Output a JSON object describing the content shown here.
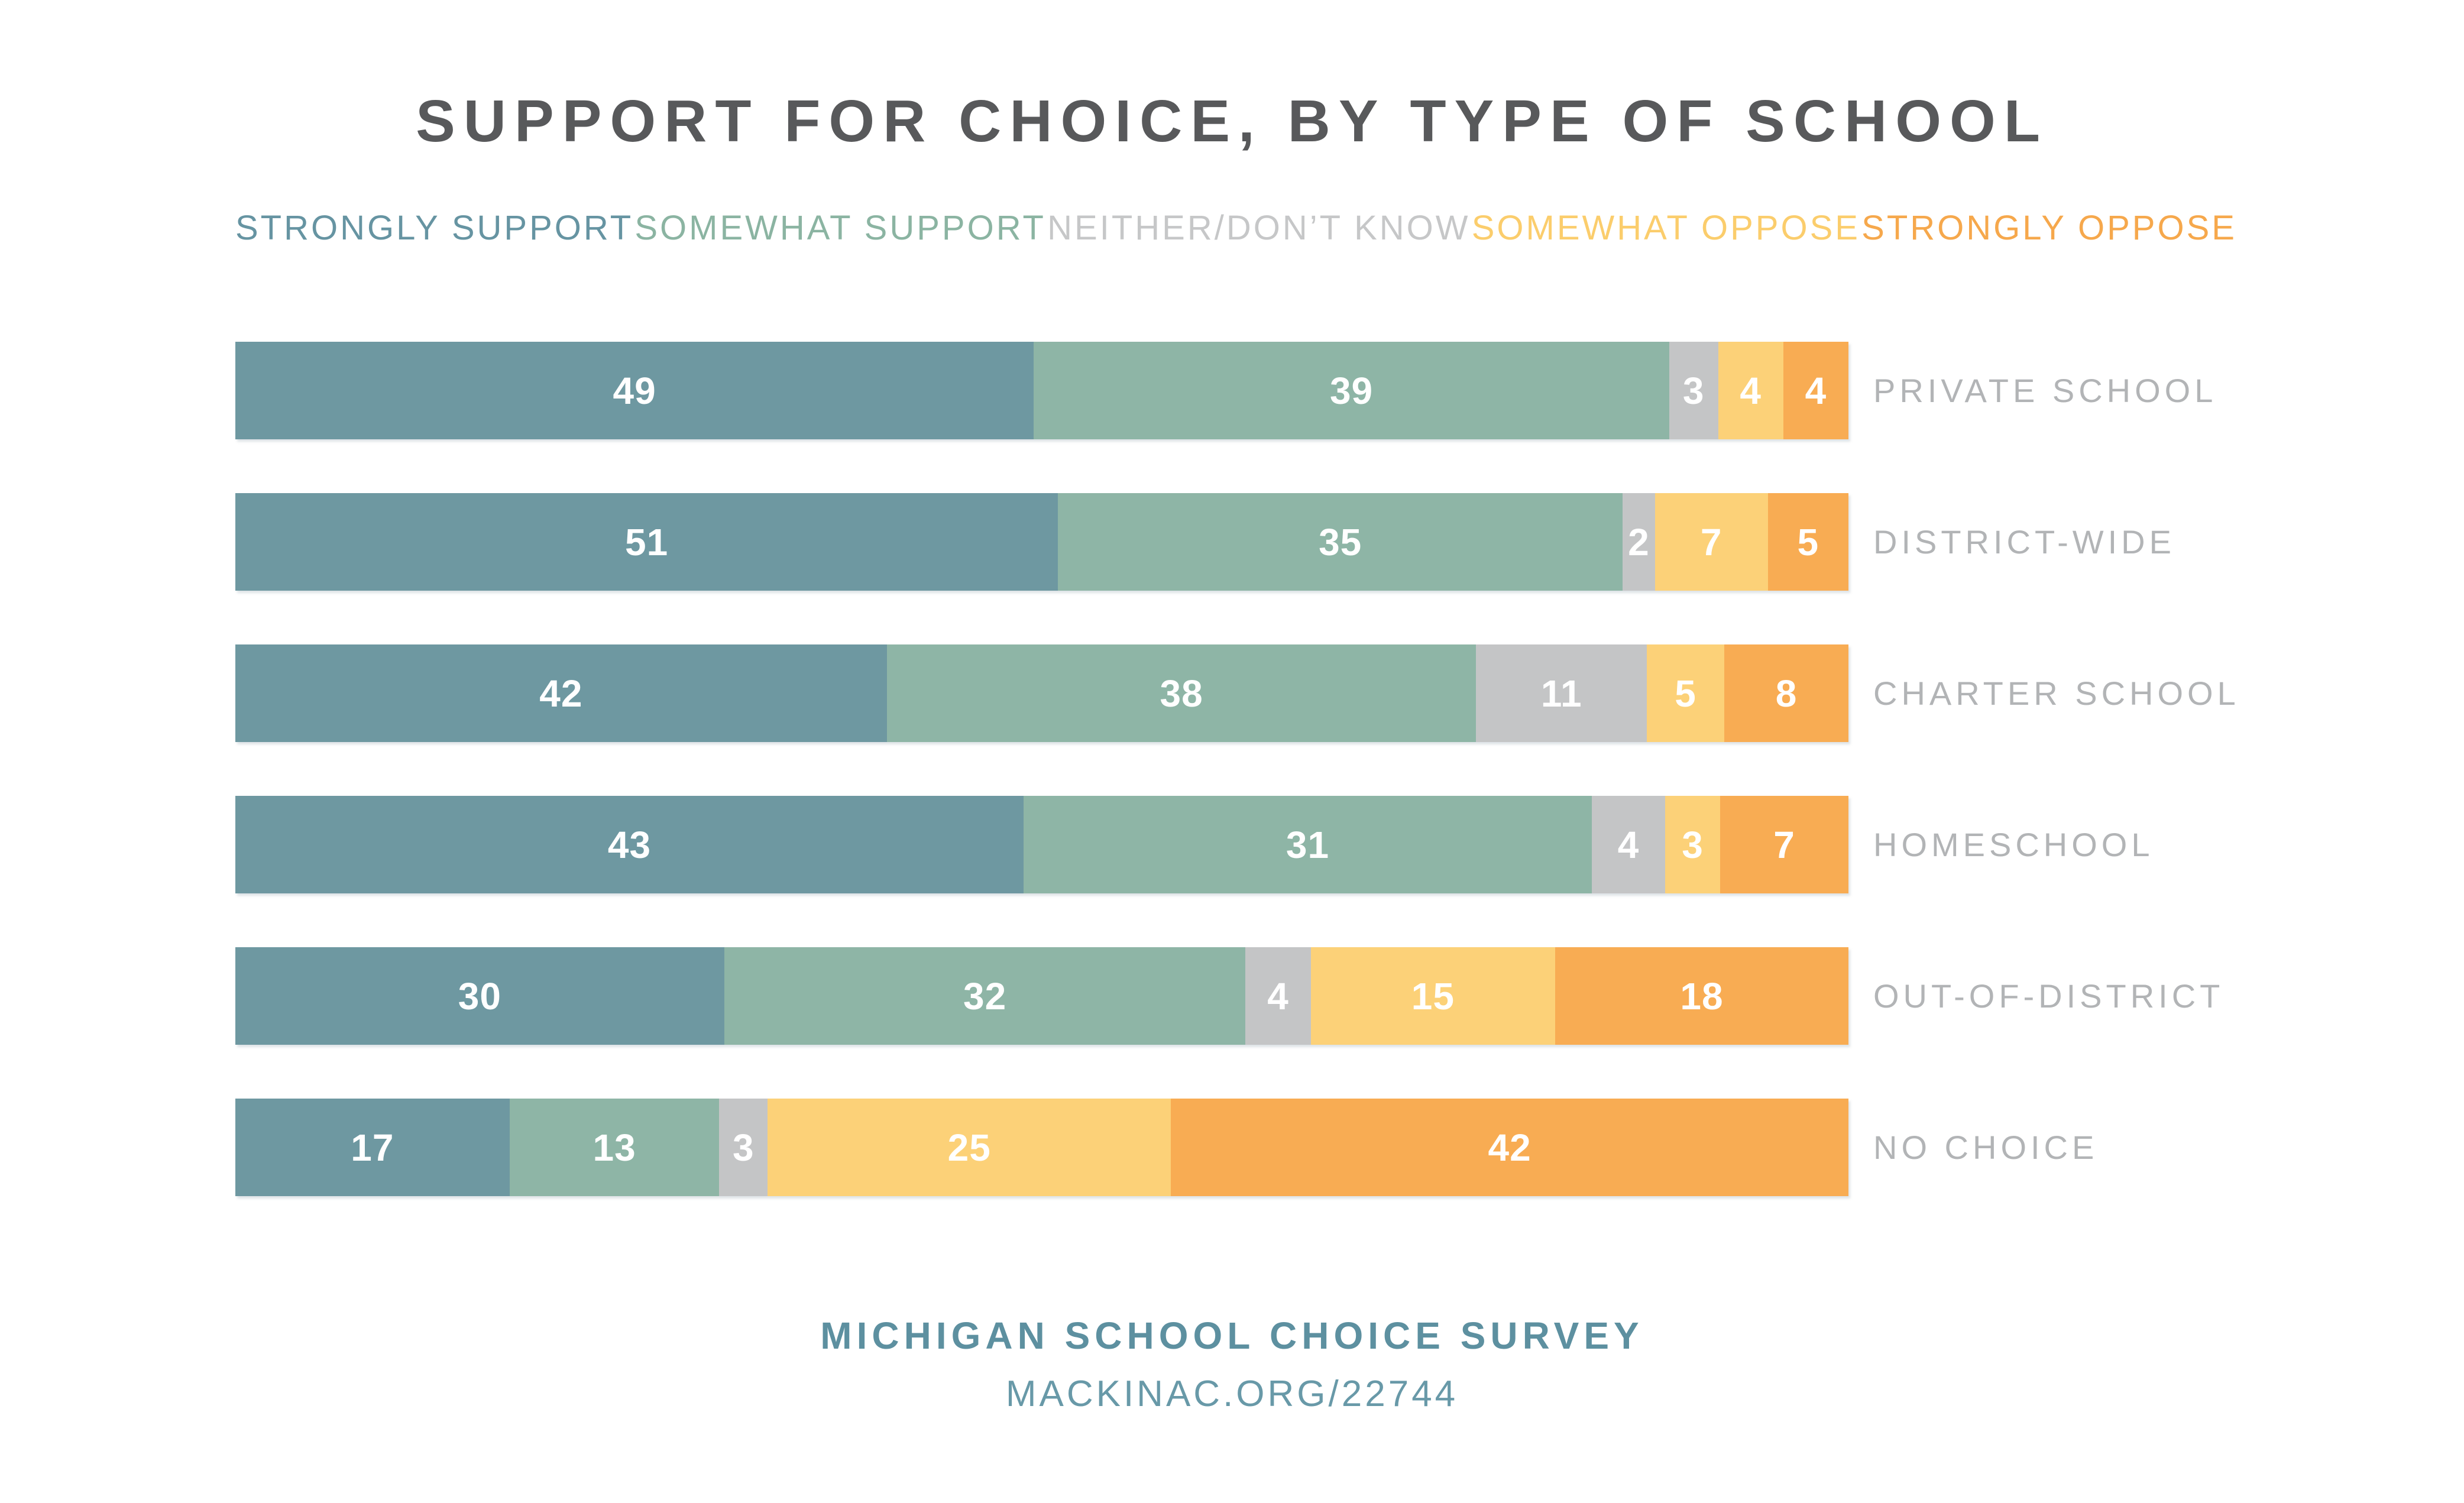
{
  "title": "SUPPORT FOR CHOICE, BY TYPE OF SCHOOL",
  "chart_data": {
    "type": "bar",
    "variant": "horizontal-stacked-normalized",
    "title": "SUPPORT FOR CHOICE, BY TYPE OF SCHOOL",
    "legend_position": "top",
    "value_labels": "inside-white",
    "categories": [
      "PRIVATE SCHOOL",
      "DISTRICT-WIDE",
      "CHARTER SCHOOL",
      "HOMESCHOOL",
      "OUT-OF-DISTRICT",
      "NO CHOICE"
    ],
    "series": [
      {
        "name": "STRONGLY SUPPORT",
        "color": "#6E98A1",
        "legend_color": "#6694A2",
        "values": [
          49,
          51,
          42,
          43,
          30,
          17
        ]
      },
      {
        "name": "SOMEWHAT SUPPORT",
        "color": "#8EB5A6",
        "legend_color": "#8BB4A2",
        "values": [
          39,
          35,
          38,
          31,
          32,
          13
        ]
      },
      {
        "name": "NEITHER/DON’T KNOW",
        "color": "#C4C5C6",
        "legend_color": "#C6C7C8",
        "values": [
          3,
          2,
          11,
          4,
          4,
          3
        ]
      },
      {
        "name": "SOMEWHAT OPPOSE",
        "color": "#FCD178",
        "legend_color": "#FBCD6C",
        "values": [
          4,
          7,
          5,
          3,
          15,
          25
        ]
      },
      {
        "name": "STRONGLY OPPOSE",
        "color": "#F8AC53",
        "legend_color": "#F6A84C",
        "values": [
          4,
          5,
          8,
          7,
          18,
          42
        ]
      }
    ]
  },
  "footer": {
    "line1": "MICHIGAN SCHOOL CHOICE SURVEY",
    "line2": "MACKINAC.ORG/22744"
  },
  "colors": {
    "title_text": "#58595B",
    "category_label_text": "#B2B4B6",
    "footer_text": "#5D90A0",
    "background": "#FFFFFF"
  }
}
